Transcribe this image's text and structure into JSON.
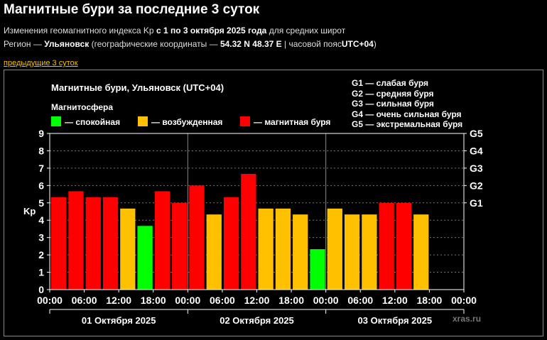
{
  "header": {
    "title": "Магнитные бури за последние 3 суток",
    "subtitle": {
      "prefix": "Изменения геомагнитного индекса Kp",
      "range": "с 1 по 3 октября 2025 года",
      "suffix": "для средних широт"
    },
    "region": {
      "label": "Регион —",
      "city": "Ульяновск",
      "coords_prefix": "(географические координаты —",
      "coords": "54.32 N 48.37 E",
      "tz_prefix": "| часовой пояс",
      "tz": "UTC+04",
      "close": ")"
    },
    "prev_link": "предыдущие 3 суток"
  },
  "chart_data": {
    "type": "bar",
    "title": "Магнитные бури, Ульяновск (UTC+04)",
    "legend_title": "Магнитосфера",
    "legend": [
      {
        "key": "calm",
        "label": "— спокойная",
        "color": "#00ff00"
      },
      {
        "key": "excited",
        "label": "— возбужденная",
        "color": "#ffc000"
      },
      {
        "key": "storm",
        "label": "— магнитная буря",
        "color": "#ff0000"
      }
    ],
    "g_legend": [
      "G1 — слабая буря",
      "G2 — средняя буря",
      "G3 — сильная буря",
      "G4 — очень сильная буря",
      "G5 — экстремальная буря"
    ],
    "ylabel": "Kp",
    "ylim": [
      0,
      9
    ],
    "yticks": [
      "0",
      "1",
      "2",
      "3",
      "4",
      "5",
      "6",
      "7",
      "8",
      "9"
    ],
    "right_ticks": [
      {
        "label": "G1",
        "value": 5
      },
      {
        "label": "G2",
        "value": 6
      },
      {
        "label": "G3",
        "value": 7
      },
      {
        "label": "G4",
        "value": 8
      },
      {
        "label": "G5",
        "value": 9
      }
    ],
    "x_labels": [
      "00:00",
      "06:00",
      "12:00",
      "18:00",
      "00:00",
      "06:00",
      "12:00",
      "18:00",
      "00:00",
      "06:00",
      "12:00",
      "18:00",
      "00:00"
    ],
    "days": [
      "01 Октября 2025",
      "02 Октября 2025",
      "03 Октября 2025"
    ],
    "colors": {
      "calm": "#00ff00",
      "excited": "#ffc000",
      "storm": "#ff0000"
    },
    "values": [
      5.33,
      5.67,
      5.33,
      5.33,
      4.67,
      3.67,
      5.67,
      5.0,
      6.0,
      4.33,
      5.33,
      6.67,
      4.67,
      4.67,
      4.33,
      2.33,
      4.67,
      4.33,
      4.33,
      5.0,
      5.0,
      4.33
    ],
    "levels": [
      "storm",
      "storm",
      "storm",
      "storm",
      "excited",
      "calm",
      "storm",
      "storm",
      "storm",
      "excited",
      "storm",
      "storm",
      "excited",
      "excited",
      "excited",
      "calm",
      "excited",
      "excited",
      "excited",
      "storm",
      "storm",
      "excited"
    ],
    "watermark": "xras.ru"
  }
}
